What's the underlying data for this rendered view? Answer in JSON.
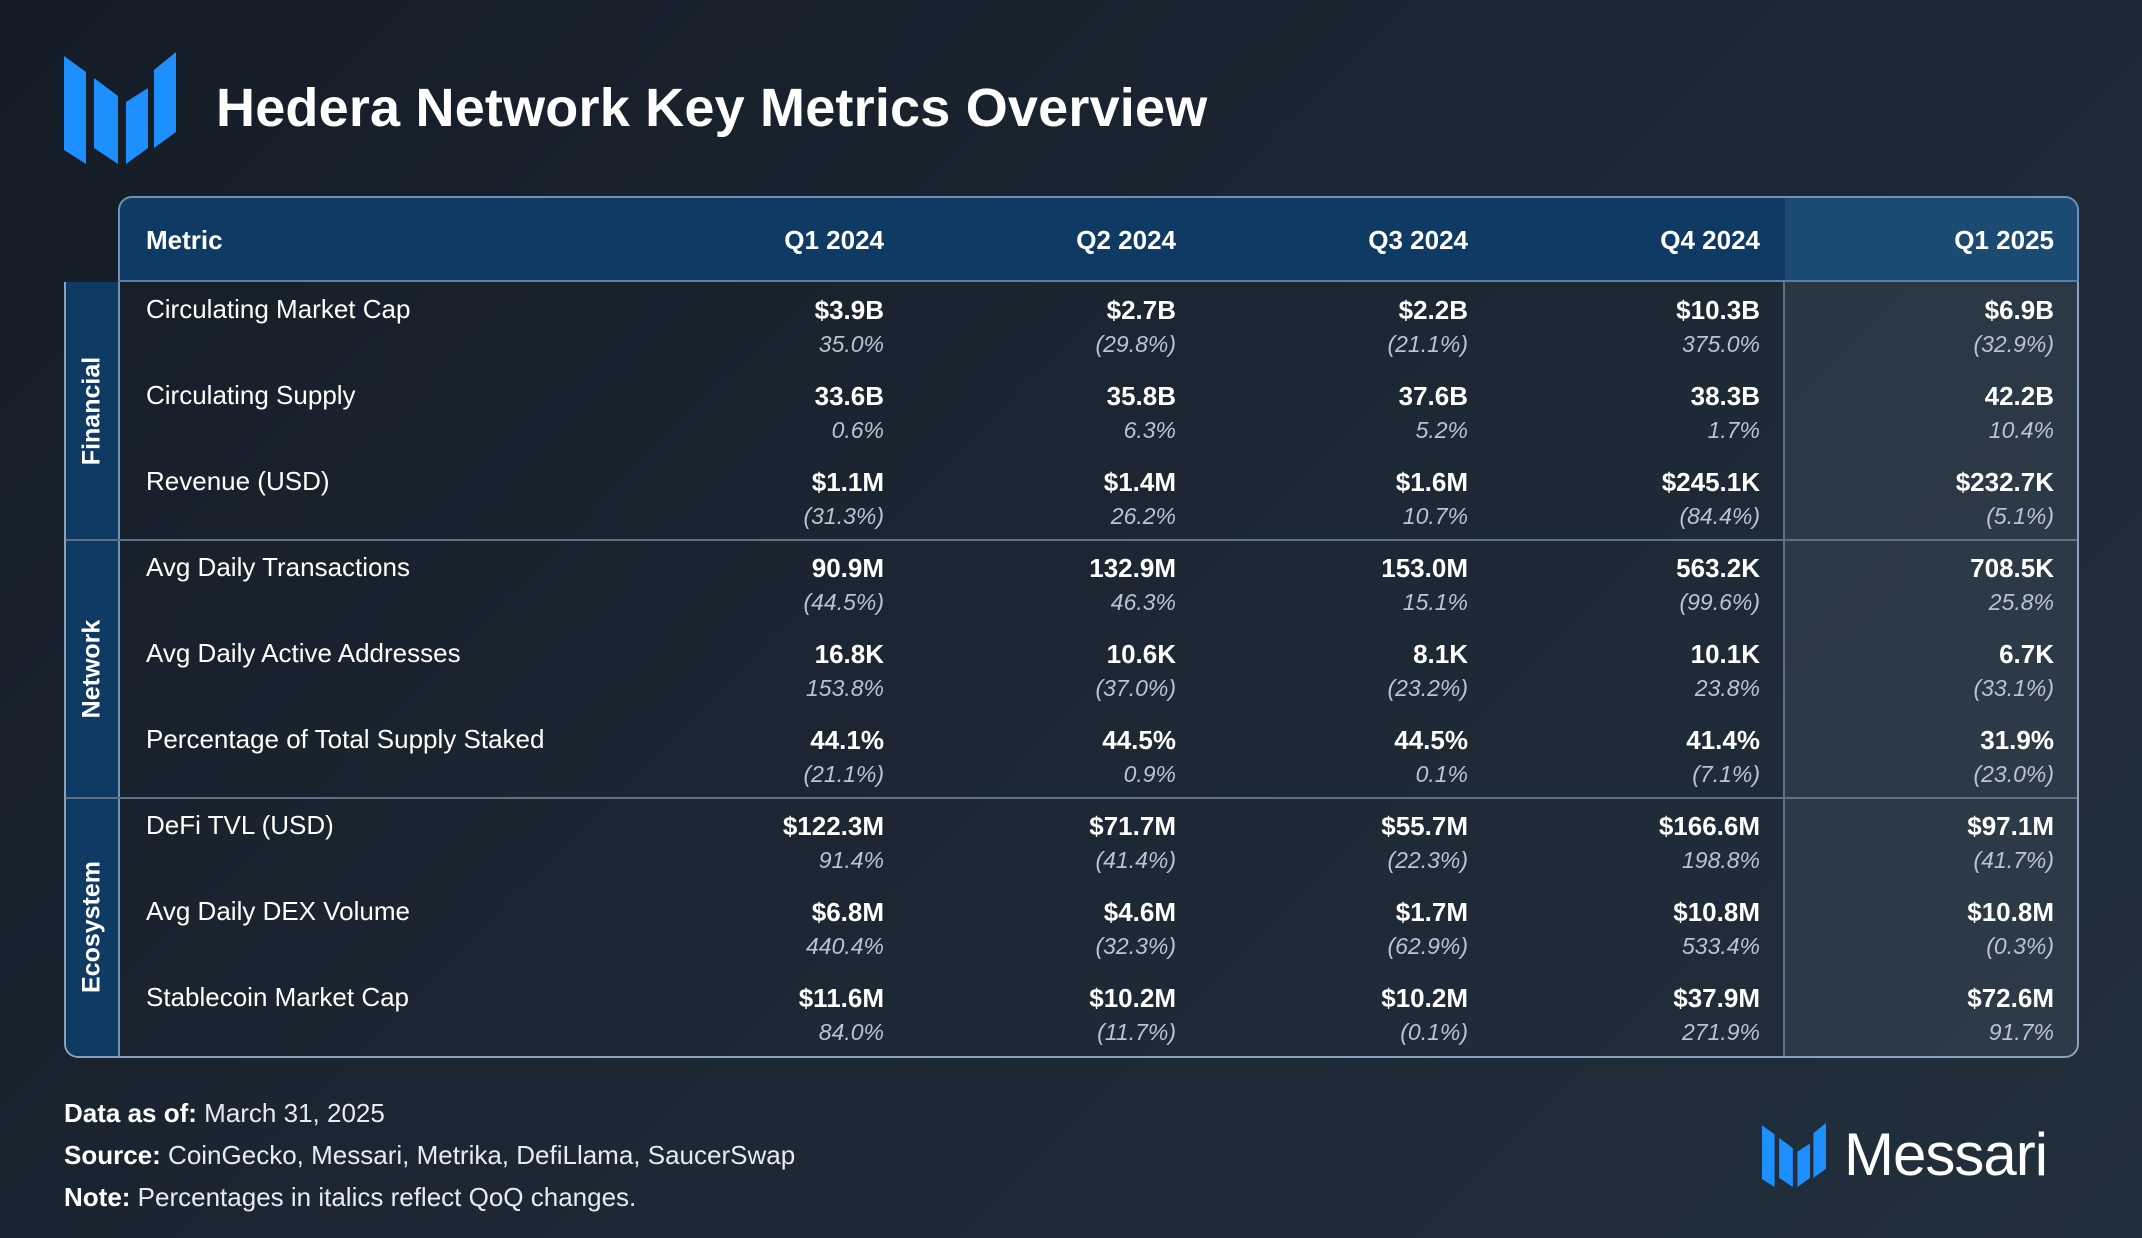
{
  "title": "Hedera Network Key Metrics Overview",
  "colors": {
    "accent": "#1e8fff",
    "header_bg": "#0f3a64",
    "background": "#1b2632"
  },
  "icons": {
    "logo": "messari-logo-icon"
  },
  "chart_data": {
    "type": "table",
    "columns": [
      "Metric",
      "Q1 2024",
      "Q2 2024",
      "Q3 2024",
      "Q4 2024",
      "Q1 2025"
    ],
    "groups": [
      {
        "name": "Financial",
        "rows": [
          {
            "metric": "Circulating Market Cap",
            "values": [
              "$3.9B",
              "$2.7B",
              "$2.2B",
              "$10.3B",
              "$6.9B"
            ],
            "changes": [
              "35.0%",
              "(29.8%)",
              "(21.1%)",
              "375.0%",
              "(32.9%)"
            ]
          },
          {
            "metric": "Circulating Supply",
            "values": [
              "33.6B",
              "35.8B",
              "37.6B",
              "38.3B",
              "42.2B"
            ],
            "changes": [
              "0.6%",
              "6.3%",
              "5.2%",
              "1.7%",
              "10.4%"
            ]
          },
          {
            "metric": "Revenue (USD)",
            "values": [
              "$1.1M",
              "$1.4M",
              "$1.6M",
              "$245.1K",
              "$232.7K"
            ],
            "changes": [
              "(31.3%)",
              "26.2%",
              "10.7%",
              "(84.4%)",
              "(5.1%)"
            ]
          }
        ]
      },
      {
        "name": "Network",
        "rows": [
          {
            "metric": "Avg Daily Transactions",
            "values": [
              "90.9M",
              "132.9M",
              "153.0M",
              "563.2K",
              "708.5K"
            ],
            "changes": [
              "(44.5%)",
              "46.3%",
              "15.1%",
              "(99.6%)",
              "25.8%"
            ]
          },
          {
            "metric": "Avg Daily Active Addresses",
            "values": [
              "16.8K",
              "10.6K",
              "8.1K",
              "10.1K",
              "6.7K"
            ],
            "changes": [
              "153.8%",
              "(37.0%)",
              "(23.2%)",
              "23.8%",
              "(33.1%)"
            ]
          },
          {
            "metric": "Percentage of Total Supply Staked",
            "values": [
              "44.1%",
              "44.5%",
              "44.5%",
              "41.4%",
              "31.9%"
            ],
            "changes": [
              "(21.1%)",
              "0.9%",
              "0.1%",
              "(7.1%)",
              "(23.0%)"
            ]
          }
        ]
      },
      {
        "name": "Ecosystem",
        "rows": [
          {
            "metric": "DeFi TVL (USD)",
            "values": [
              "$122.3M",
              "$71.7M",
              "$55.7M",
              "$166.6M",
              "$97.1M"
            ],
            "changes": [
              "91.4%",
              "(41.4%)",
              "(22.3%)",
              "198.8%",
              "(41.7%)"
            ]
          },
          {
            "metric": "Avg Daily DEX Volume",
            "values": [
              "$6.8M",
              "$4.6M",
              "$1.7M",
              "$10.8M",
              "$10.8M"
            ],
            "changes": [
              "440.4%",
              "(32.3%)",
              "(62.9%)",
              "533.4%",
              "(0.3%)"
            ]
          },
          {
            "metric": "Stablecoin Market Cap",
            "values": [
              "$11.6M",
              "$10.2M",
              "$10.2M",
              "$37.9M",
              "$72.6M"
            ],
            "changes": [
              "84.0%",
              "(11.7%)",
              "(0.1%)",
              "271.9%",
              "91.7%"
            ]
          }
        ]
      }
    ]
  },
  "footer": {
    "data_as_of_label": "Data as of:",
    "data_as_of": "March 31, 2025",
    "source_label": "Source:",
    "source": "CoinGecko, Messari, Metrika, DefiLlama, SaucerSwap",
    "note_label": "Note:",
    "note": "Percentages in italics reflect QoQ changes."
  },
  "brand": "Messari"
}
